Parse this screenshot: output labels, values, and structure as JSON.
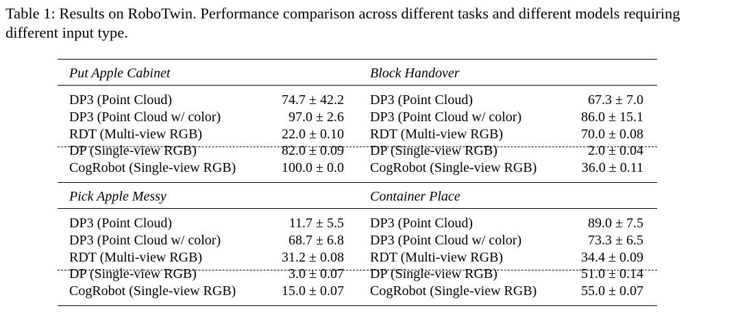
{
  "caption": "Table 1: Results on RoboTwin. Performance comparison across different tasks and different models requiring different input type.",
  "sections": [
    {
      "left_title": "Put Apple Cabinet",
      "right_title": "Block Handover",
      "rows": [
        {
          "left_model": "DP3 (Point Cloud)",
          "left_value": "74.7 ± 42.2",
          "right_model": "DP3 (Point Cloud)",
          "right_value": "67.3 ± 7.0"
        },
        {
          "left_model": "DP3 (Point Cloud w/ color)",
          "left_value": "97.0 ± 2.6",
          "right_model": "DP3 (Point Cloud w/ color)",
          "right_value": "86.0 ± 15.1"
        },
        {
          "left_model": "RDT (Multi-view RGB)",
          "left_value": "22.0 ± 0.10",
          "right_model": "RDT (Multi-view RGB)",
          "right_value": "70.0 ± 0.08"
        },
        {
          "left_model": "DP (Single-view RGB)",
          "left_value": "82.0 ± 0.09",
          "right_model": "DP (Single-view RGB)",
          "right_value": "2.0 ± 0.04"
        },
        {
          "left_model": "CogRobot (Single-view RGB)",
          "left_value": "100.0 ± 0.0",
          "right_model": "CogRobot (Single-view RGB)",
          "right_value": "36.0 ± 0.11"
        }
      ]
    },
    {
      "left_title": "Pick Apple Messy",
      "right_title": "Container Place",
      "rows": [
        {
          "left_model": "DP3 (Point Cloud)",
          "left_value": "11.7 ± 5.5",
          "right_model": "DP3 (Point Cloud)",
          "right_value": "89.0 ± 7.5"
        },
        {
          "left_model": "DP3 (Point Cloud w/ color)",
          "left_value": "68.7 ± 6.8",
          "right_model": "DP3 (Point Cloud w/ color)",
          "right_value": "73.3 ± 6.5"
        },
        {
          "left_model": "RDT (Multi-view RGB)",
          "left_value": "31.2 ± 0.08",
          "right_model": "RDT (Multi-view RGB)",
          "right_value": "34.4 ± 0.09"
        },
        {
          "left_model": "DP (Single-view RGB)",
          "left_value": "3.0 ± 0.07",
          "right_model": "DP (Single-view RGB)",
          "right_value": "51.0 ± 0.14"
        },
        {
          "left_model": "CogRobot (Single-view RGB)",
          "left_value": "15.0 ± 0.07",
          "right_model": "CogRobot (Single-view RGB)",
          "right_value": "55.0 ± 0.07"
        }
      ]
    }
  ]
}
